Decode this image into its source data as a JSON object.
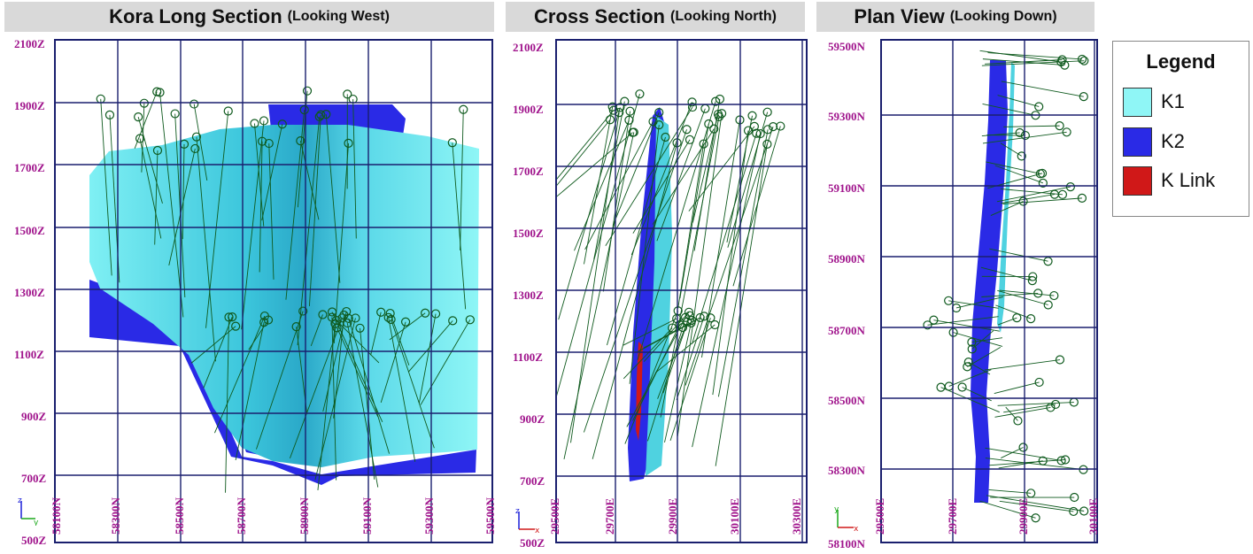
{
  "panels": [
    {
      "title": "Kora Long Section",
      "subtitle": "(Looking West)",
      "y_labels": [
        "2100Z",
        "1900Z",
        "1700Z",
        "1500Z",
        "1300Z",
        "1100Z",
        "900Z",
        "700Z",
        "500Z"
      ],
      "x_labels": [
        "58100N",
        "58300N",
        "58500N",
        "58700N",
        "58900N",
        "59100N",
        "59300N",
        "59500N"
      ]
    },
    {
      "title": "Cross Section",
      "subtitle": "(Looking North)",
      "y_labels": [
        "2100Z",
        "1900Z",
        "1700Z",
        "1500Z",
        "1300Z",
        "1100Z",
        "900Z",
        "700Z",
        "500Z"
      ],
      "x_labels": [
        "29500E",
        "29700E",
        "29900E",
        "30100E",
        "30300E"
      ]
    },
    {
      "title": "Plan View",
      "subtitle": "(Looking Down)",
      "y_labels": [
        "59500N",
        "59300N",
        "59100N",
        "58900N",
        "58700N",
        "58500N",
        "58300N",
        "58100N"
      ],
      "x_labels": [
        "29500E",
        "29700E",
        "29900E",
        "30100E"
      ]
    }
  ],
  "legend": {
    "title": "Legend",
    "items": [
      {
        "label": "K1",
        "color": "#8ff6f6"
      },
      {
        "label": "K2",
        "color": "#2a2ae6"
      },
      {
        "label": "K Link",
        "color": "#d01818"
      }
    ]
  },
  "colors": {
    "grid": "#1a1f6e",
    "label": "#a0148c",
    "k1": "#6ee6ee",
    "k2": "#2a2ae6",
    "klink": "#d01818",
    "drill": "#0f5a1e"
  }
}
